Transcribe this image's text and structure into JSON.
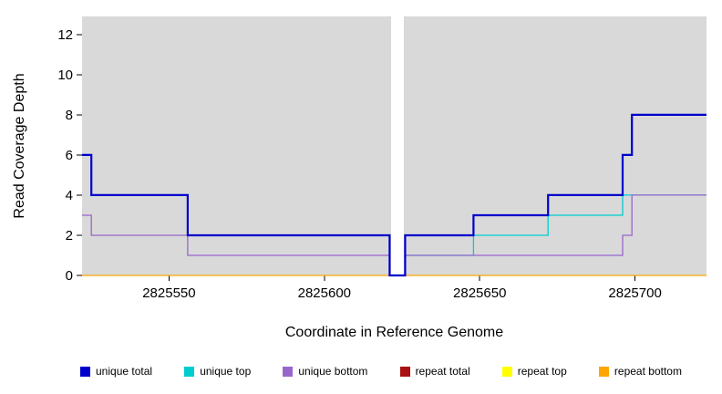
{
  "chart_data": {
    "type": "line",
    "step": true,
    "title": "",
    "xlabel": "Coordinate in Reference Genome",
    "ylabel": "Read Coverage Depth",
    "xlim": [
      2825522,
      2825723
    ],
    "ylim": [
      0,
      12.9
    ],
    "xticks": [
      2825550,
      2825600,
      2825650,
      2825700
    ],
    "yticks": [
      0,
      2,
      4,
      6,
      8,
      10,
      12
    ],
    "plot_background": "#d9d9d9",
    "gap_region": {
      "from": 2825621.4,
      "to": 2825625.6
    },
    "grid": false,
    "legend_position": "bottom",
    "legend": [
      {
        "label": "unique total",
        "color": "#0000CC"
      },
      {
        "label": "unique top",
        "color": "#00CDCD"
      },
      {
        "label": "unique bottom",
        "color": "#9966CC"
      },
      {
        "label": "repeat total",
        "color": "#AA1111"
      },
      {
        "label": "repeat top",
        "color": "#FFFF00"
      },
      {
        "label": "repeat bottom",
        "color": "#FFA500"
      }
    ],
    "series": [
      {
        "name": "repeat total",
        "color": "#AA1111",
        "width": 1,
        "segments": [
          [
            [
              2825522,
              0
            ],
            [
              2825723,
              0
            ]
          ]
        ]
      },
      {
        "name": "repeat top",
        "color": "#FFFF00",
        "width": 1,
        "segments": [
          [
            [
              2825522,
              0
            ],
            [
              2825723,
              0
            ]
          ]
        ]
      },
      {
        "name": "repeat bottom",
        "color": "#FFA500",
        "width": 1.3,
        "segments": [
          [
            [
              2825522,
              0
            ],
            [
              2825723,
              0
            ]
          ]
        ]
      },
      {
        "name": "unique top",
        "color": "#00CDCD",
        "width": 1.3,
        "segments": [
          [
            [
              2825626,
              1
            ],
            [
              2825648,
              2
            ],
            [
              2825672,
              3
            ],
            [
              2825696,
              4
            ],
            [
              2825723,
              4
            ]
          ]
        ]
      },
      {
        "name": "unique bottom",
        "color": "#9966CC",
        "width": 1.3,
        "segments": [
          [
            [
              2825522,
              3
            ],
            [
              2825525,
              2
            ],
            [
              2825556,
              1
            ],
            [
              2825621,
              1
            ]
          ],
          [
            [
              2825626,
              1
            ],
            [
              2825696,
              2
            ],
            [
              2825699,
              4
            ],
            [
              2825723,
              4
            ]
          ]
        ]
      },
      {
        "name": "unique total",
        "color": "#0000CC",
        "width": 2.2,
        "segments": [
          [
            [
              2825522,
              6
            ],
            [
              2825525,
              4
            ],
            [
              2825556,
              2
            ],
            [
              2825621,
              0
            ],
            [
              2825626,
              2
            ],
            [
              2825648,
              3
            ],
            [
              2825672,
              4
            ],
            [
              2825696,
              6
            ],
            [
              2825699,
              8
            ],
            [
              2825723,
              8
            ]
          ]
        ]
      }
    ]
  }
}
